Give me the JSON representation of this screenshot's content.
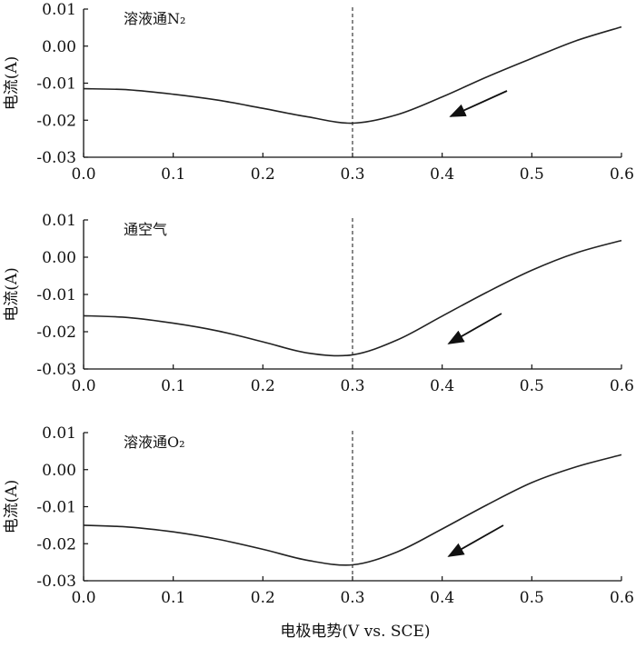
{
  "x_axis_label": "电极电势(V vs. SCE)",
  "chart_data": [
    {
      "type": "line",
      "annotation": "溶液通N₂",
      "ylabel": "电流(A)",
      "xlim": [
        0.0,
        0.6
      ],
      "ylim": [
        -0.03,
        0.01
      ],
      "xticks": [
        "0.0",
        "0.1",
        "0.2",
        "0.3",
        "0.4",
        "0.5",
        "0.6"
      ],
      "yticks": [
        "0.01",
        "0.00",
        "-0.01",
        "-0.02",
        "-0.03"
      ],
      "reference_line_x": 0.3,
      "scan_direction": "toward lower potential",
      "series": [
        {
          "x": [
            0.0,
            0.05,
            0.1,
            0.15,
            0.2,
            0.25,
            0.3,
            0.35,
            0.4,
            0.45,
            0.5,
            0.55,
            0.6
          ],
          "values": [
            -0.0115,
            -0.0118,
            -0.013,
            -0.0146,
            -0.0168,
            -0.0191,
            -0.0208,
            -0.0185,
            -0.0137,
            -0.0083,
            -0.0033,
            0.0015,
            0.0052
          ]
        }
      ]
    },
    {
      "type": "line",
      "annotation": "通空气",
      "ylabel": "电流(A)",
      "xlim": [
        0.0,
        0.6
      ],
      "ylim": [
        -0.03,
        0.01
      ],
      "xticks": [
        "0.0",
        "0.1",
        "0.2",
        "0.3",
        "0.4",
        "0.5",
        "0.6"
      ],
      "yticks": [
        "0.01",
        "0.00",
        "-0.01",
        "-0.02",
        "-0.03"
      ],
      "reference_line_x": 0.3,
      "scan_direction": "toward lower potential",
      "series": [
        {
          "x": [
            0.0,
            0.05,
            0.1,
            0.15,
            0.2,
            0.25,
            0.3,
            0.35,
            0.4,
            0.45,
            0.5,
            0.55,
            0.6
          ],
          "values": [
            -0.0157,
            -0.0162,
            -0.0177,
            -0.0198,
            -0.0227,
            -0.0257,
            -0.0262,
            -0.0222,
            -0.0158,
            -0.0094,
            -0.0035,
            0.0012,
            0.0045
          ]
        }
      ]
    },
    {
      "type": "line",
      "annotation": "溶液通O₂",
      "ylabel": "电流(A)",
      "xlim": [
        0.0,
        0.6
      ],
      "ylim": [
        -0.03,
        0.01
      ],
      "xticks": [
        "0.0",
        "0.1",
        "0.2",
        "0.3",
        "0.4",
        "0.5",
        "0.6"
      ],
      "yticks": [
        "0.01",
        "0.00",
        "-0.01",
        "-0.02",
        "-0.03"
      ],
      "reference_line_x": 0.3,
      "scan_direction": "toward lower potential",
      "series": [
        {
          "x": [
            0.0,
            0.05,
            0.1,
            0.15,
            0.2,
            0.25,
            0.3,
            0.35,
            0.4,
            0.45,
            0.5,
            0.55,
            0.6
          ],
          "values": [
            -0.015,
            -0.0155,
            -0.0168,
            -0.0188,
            -0.0215,
            -0.0245,
            -0.0257,
            -0.0222,
            -0.016,
            -0.0095,
            -0.0035,
            0.0008,
            0.004
          ]
        }
      ]
    }
  ]
}
